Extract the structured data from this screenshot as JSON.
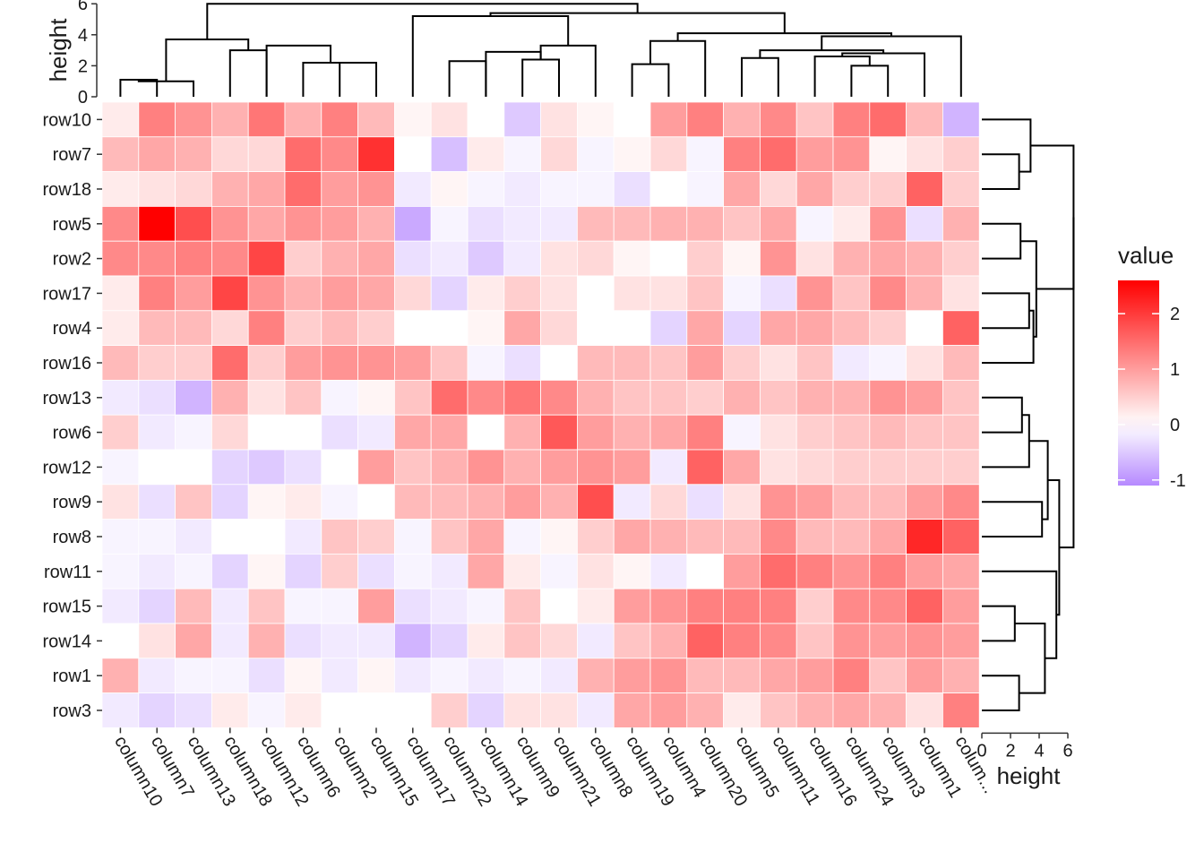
{
  "chart_data": {
    "type": "heatmap",
    "rows": [
      "row10",
      "row7",
      "row18",
      "row5",
      "row2",
      "row17",
      "row4",
      "row16",
      "row13",
      "row6",
      "row12",
      "row9",
      "row8",
      "row11",
      "row15",
      "row14",
      "row1",
      "row3"
    ],
    "columns": [
      "column10",
      "column7",
      "column13",
      "column18",
      "column12",
      "column6",
      "column2",
      "column15",
      "column17",
      "column22",
      "column14",
      "column9",
      "column21",
      "column8",
      "column19",
      "column4",
      "column20",
      "column5",
      "column11",
      "column16",
      "column24",
      "column3",
      "column1",
      "colum..."
    ],
    "values": [
      [
        0.2,
        1.3,
        1.1,
        0.8,
        1.4,
        0.8,
        1.3,
        0.7,
        0.1,
        0.3,
        0.0,
        -0.5,
        0.3,
        0.1,
        0.0,
        1.0,
        1.3,
        0.8,
        1.2,
        0.6,
        1.3,
        1.5,
        0.7,
        -0.7
      ],
      [
        0.7,
        0.9,
        0.8,
        0.4,
        0.4,
        1.5,
        1.2,
        2.1,
        0.0,
        -0.6,
        0.2,
        -0.1,
        0.4,
        -0.1,
        0.1,
        0.4,
        -0.1,
        1.3,
        1.5,
        1.0,
        1.1,
        0.1,
        0.3,
        0.5
      ],
      [
        0.2,
        0.3,
        0.4,
        0.8,
        0.9,
        1.5,
        1.0,
        1.1,
        -0.2,
        0.1,
        -0.1,
        -0.2,
        -0.1,
        -0.1,
        -0.3,
        0.0,
        -0.1,
        0.9,
        0.4,
        0.9,
        0.5,
        0.5,
        1.6,
        0.5
      ],
      [
        1.2,
        2.6,
        1.8,
        1.1,
        0.9,
        1.1,
        1.0,
        0.8,
        -0.8,
        -0.1,
        -0.3,
        -0.2,
        -0.2,
        0.7,
        0.7,
        0.8,
        0.8,
        0.6,
        0.9,
        -0.1,
        0.2,
        1.1,
        -0.3,
        0.8
      ],
      [
        1.2,
        1.2,
        1.3,
        1.2,
        1.9,
        0.5,
        0.8,
        0.9,
        -0.3,
        -0.2,
        -0.5,
        -0.2,
        0.3,
        0.4,
        0.1,
        0.0,
        0.5,
        0.1,
        1.1,
        0.3,
        0.8,
        0.9,
        0.8,
        0.5
      ],
      [
        0.2,
        1.3,
        1.0,
        1.9,
        1.1,
        0.8,
        1.0,
        0.9,
        0.4,
        -0.4,
        0.2,
        0.5,
        0.3,
        0.0,
        0.3,
        0.3,
        0.6,
        -0.1,
        -0.3,
        1.1,
        0.6,
        1.2,
        0.8,
        0.3
      ],
      [
        0.2,
        0.7,
        0.7,
        0.4,
        1.3,
        0.5,
        0.7,
        0.5,
        0.0,
        0.0,
        0.1,
        0.9,
        0.4,
        0.0,
        0.0,
        -0.4,
        0.9,
        -0.4,
        0.9,
        0.9,
        0.7,
        0.5,
        0.0,
        1.6
      ],
      [
        0.7,
        0.5,
        0.5,
        1.5,
        0.5,
        1.0,
        1.1,
        1.1,
        1.0,
        0.6,
        -0.1,
        -0.3,
        0.0,
        0.7,
        0.7,
        0.6,
        1.0,
        0.5,
        0.3,
        0.6,
        -0.2,
        -0.1,
        0.3,
        0.7
      ],
      [
        -0.2,
        -0.3,
        -0.7,
        0.8,
        0.3,
        0.6,
        -0.1,
        0.1,
        0.6,
        1.5,
        1.2,
        1.4,
        1.2,
        0.8,
        0.6,
        0.6,
        0.5,
        0.8,
        0.6,
        0.8,
        0.8,
        1.1,
        1.0,
        0.6
      ],
      [
        0.5,
        -0.2,
        -0.1,
        0.4,
        0.0,
        0.0,
        -0.3,
        -0.2,
        0.9,
        0.9,
        0.0,
        0.8,
        1.7,
        1.0,
        0.8,
        0.9,
        1.3,
        -0.1,
        0.3,
        0.5,
        0.6,
        0.7,
        0.6,
        0.6
      ],
      [
        -0.1,
        0.0,
        0.0,
        -0.4,
        -0.5,
        -0.3,
        0.0,
        1.0,
        0.6,
        0.8,
        1.1,
        0.8,
        1.0,
        1.1,
        1.0,
        -0.2,
        1.6,
        0.9,
        0.3,
        0.4,
        0.5,
        0.5,
        0.5,
        0.5
      ],
      [
        0.3,
        -0.3,
        0.6,
        -0.4,
        0.1,
        0.2,
        -0.1,
        0.0,
        0.7,
        0.7,
        0.8,
        1.0,
        0.8,
        1.8,
        -0.2,
        0.4,
        -0.3,
        0.3,
        1.1,
        1.0,
        0.7,
        0.7,
        1.0,
        1.2
      ],
      [
        -0.1,
        -0.1,
        -0.2,
        0.0,
        0.0,
        -0.2,
        0.6,
        0.5,
        -0.1,
        0.6,
        0.9,
        -0.1,
        0.1,
        0.5,
        0.9,
        0.8,
        0.7,
        0.7,
        1.2,
        0.7,
        0.7,
        0.9,
        2.2,
        1.6
      ],
      [
        -0.1,
        -0.2,
        -0.1,
        -0.4,
        0.1,
        -0.4,
        0.5,
        -0.3,
        -0.1,
        -0.2,
        0.9,
        0.2,
        -0.1,
        0.3,
        0.1,
        -0.2,
        0.0,
        1.0,
        1.5,
        1.3,
        1.1,
        1.3,
        1.0,
        0.9
      ],
      [
        -0.2,
        -0.4,
        0.7,
        -0.2,
        0.6,
        -0.1,
        -0.1,
        1.0,
        -0.3,
        -0.2,
        -0.1,
        0.6,
        0.0,
        0.2,
        1.0,
        1.1,
        1.3,
        1.3,
        1.3,
        0.5,
        1.2,
        1.2,
        1.6,
        1.0
      ],
      [
        0.0,
        0.3,
        0.9,
        -0.2,
        0.8,
        -0.3,
        -0.2,
        -0.2,
        -0.7,
        -0.4,
        0.2,
        0.6,
        0.4,
        -0.2,
        0.6,
        0.8,
        1.6,
        1.3,
        1.2,
        0.6,
        1.1,
        1.0,
        1.1,
        1.0
      ],
      [
        0.8,
        -0.2,
        -0.1,
        -0.1,
        -0.3,
        0.1,
        -0.2,
        0.1,
        -0.2,
        -0.1,
        -0.2,
        -0.1,
        -0.2,
        0.8,
        1.0,
        1.1,
        0.7,
        0.7,
        0.9,
        1.0,
        1.3,
        0.6,
        1.0,
        0.8
      ],
      [
        -0.2,
        -0.4,
        -0.3,
        0.2,
        -0.1,
        0.2,
        0.0,
        0.0,
        0.0,
        0.5,
        -0.4,
        0.3,
        0.3,
        -0.2,
        0.9,
        1.0,
        0.8,
        0.2,
        0.6,
        0.8,
        0.9,
        0.8,
        0.3,
        1.3
      ]
    ],
    "top_axis": {
      "title": "height",
      "ticks": [
        "0",
        "2",
        "4",
        "6"
      ],
      "range": [
        0,
        6
      ]
    },
    "right_axis": {
      "title": "height",
      "ticks": [
        "0",
        "2",
        "4",
        "6"
      ],
      "range": [
        0,
        6
      ]
    },
    "legend": {
      "title": "value",
      "placement": "right",
      "breaks": [
        "2",
        "1",
        "0",
        "-1"
      ],
      "range": [
        -1.1,
        2.6
      ],
      "low_color": "#b689ff",
      "mid_color": "#ffffff",
      "high_color": "#ff0000"
    },
    "col_dendrogram": [
      {
        "a": 0,
        "b": 1,
        "h": 1.1
      },
      {
        "a": 0,
        "b": 2,
        "h": 1.0
      },
      {
        "a": 3,
        "b": 4,
        "h": 3.0
      },
      {
        "a": 0,
        "b": 3,
        "h": 3.7
      },
      {
        "a": 6,
        "b": 7,
        "h": 2.2
      },
      {
        "a": 5,
        "b": 6,
        "h": 2.2
      },
      {
        "a": 4,
        "b": 5,
        "h": 3.3
      },
      {
        "a": 9,
        "b": 10,
        "h": 2.3
      },
      {
        "a": 11,
        "b": 12,
        "h": 2.4
      },
      {
        "a": 10,
        "b": 11,
        "h": 2.9
      },
      {
        "a": 11,
        "b": 13,
        "h": 3.3
      },
      {
        "a": 8,
        "b": 11,
        "h": 5.2
      },
      {
        "a": 14,
        "b": 15,
        "h": 2.1
      },
      {
        "a": 14,
        "b": 16,
        "h": 3.6
      },
      {
        "a": 17,
        "b": 18,
        "h": 2.5
      },
      {
        "a": 20,
        "b": 21,
        "h": 2.0
      },
      {
        "a": 19,
        "b": 20,
        "h": 2.6
      },
      {
        "a": 19,
        "b": 22,
        "h": 2.8
      },
      {
        "a": 17,
        "b": 19,
        "h": 3.0
      },
      {
        "a": 17,
        "b": 23,
        "h": 3.9
      },
      {
        "a": 14,
        "b": 17,
        "h": 4.1
      },
      {
        "a": 8,
        "b": 14,
        "h": 5.4
      },
      {
        "a": 0,
        "b": 8,
        "h": 6.0
      }
    ],
    "row_dendrogram": [
      {
        "a": 1,
        "b": 2,
        "h": 2.6
      },
      {
        "a": 0,
        "b": 1,
        "h": 3.4
      },
      {
        "a": 3,
        "b": 4,
        "h": 2.7
      },
      {
        "a": 5,
        "b": 6,
        "h": 3.3
      },
      {
        "a": 5,
        "b": 7,
        "h": 3.6
      },
      {
        "a": 3,
        "b": 5,
        "h": 3.8
      },
      {
        "a": 0,
        "b": 3,
        "h": 6.4
      },
      {
        "a": 8,
        "b": 9,
        "h": 2.8
      },
      {
        "a": 8,
        "b": 10,
        "h": 3.3
      },
      {
        "a": 11,
        "b": 12,
        "h": 4.2
      },
      {
        "a": 8,
        "b": 11,
        "h": 4.6
      },
      {
        "a": 14,
        "b": 15,
        "h": 2.3
      },
      {
        "a": 16,
        "b": 17,
        "h": 2.6
      },
      {
        "a": 14,
        "b": 16,
        "h": 4.4
      },
      {
        "a": 13,
        "b": 14,
        "h": 5.2
      },
      {
        "a": 8,
        "b": 13,
        "h": 5.4
      },
      {
        "a": 0,
        "b": 8,
        "h": 6.4
      }
    ]
  }
}
